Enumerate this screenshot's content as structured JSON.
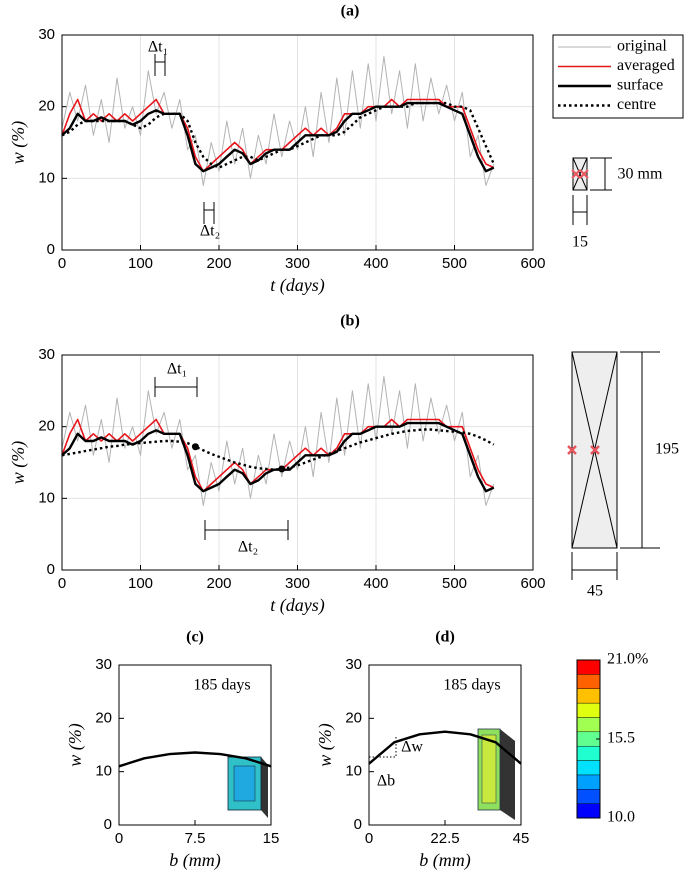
{
  "chart_data": [
    {
      "type": "line",
      "title": "(a)",
      "xlabel": "t (days)",
      "ylabel": "w (%)",
      "xlim": [
        0,
        600
      ],
      "xticks": [
        0,
        100,
        200,
        300,
        400,
        500,
        600
      ],
      "ylim": [
        0,
        30
      ],
      "yticks": [
        0,
        10,
        20,
        30
      ],
      "grid": true,
      "legend": "right",
      "x": [
        0,
        10,
        20,
        30,
        40,
        50,
        60,
        70,
        80,
        90,
        100,
        110,
        120,
        130,
        140,
        150,
        160,
        170,
        180,
        190,
        200,
        210,
        220,
        230,
        240,
        250,
        260,
        270,
        280,
        290,
        300,
        310,
        320,
        330,
        340,
        350,
        360,
        370,
        380,
        390,
        400,
        410,
        420,
        430,
        440,
        450,
        460,
        470,
        480,
        490,
        500,
        510,
        520,
        530,
        540,
        550
      ],
      "series": [
        {
          "name": "original",
          "color": "#b3b3b3",
          "linestyle": "solid",
          "values": [
            17,
            22,
            18,
            23,
            16,
            21,
            15,
            24,
            17,
            20,
            16,
            25,
            19,
            22,
            17,
            21,
            14,
            16,
            9,
            15,
            11,
            18,
            12,
            17,
            10,
            16,
            12,
            19,
            13,
            18,
            14,
            20,
            13,
            22,
            15,
            24,
            16,
            25,
            17,
            26,
            18,
            27,
            19,
            25,
            17,
            26,
            18,
            24,
            19,
            23,
            18,
            22,
            13,
            16,
            9,
            12
          ]
        },
        {
          "name": "averaged",
          "color": "#e8141c",
          "linestyle": "solid",
          "values": [
            16,
            19,
            21,
            18,
            19,
            18,
            19,
            18,
            19,
            18,
            19,
            20,
            21,
            19,
            19,
            19,
            17,
            13,
            11,
            12,
            13,
            14,
            15,
            14,
            12,
            13,
            14,
            14,
            14,
            15,
            16,
            17,
            16,
            17,
            16,
            17,
            19,
            19,
            19,
            20,
            20,
            20,
            21,
            20,
            21,
            21,
            21,
            21,
            21,
            20,
            20,
            20,
            17,
            14,
            12,
            11.5
          ]
        },
        {
          "name": "surface",
          "color": "#000000",
          "linestyle": "solid",
          "values": [
            16,
            17,
            19,
            18,
            18,
            18.5,
            18,
            18,
            18,
            17.5,
            18,
            19,
            19.5,
            19,
            19,
            19,
            16,
            12,
            11,
            11.5,
            12,
            13,
            14,
            13.5,
            12,
            12.5,
            13.5,
            14,
            14,
            14,
            15,
            16,
            16,
            16,
            16,
            16.5,
            18,
            19,
            19,
            19.5,
            20,
            20,
            20,
            20,
            20.5,
            20.5,
            20.5,
            20.5,
            20.5,
            20,
            19.5,
            19,
            16,
            13,
            11,
            11.5
          ]
        },
        {
          "name": "centre",
          "color": "#000000",
          "linestyle": "dotted",
          "values": [
            16,
            16.5,
            17.5,
            18,
            18,
            18,
            18,
            18,
            18,
            17.5,
            17,
            17.5,
            18.5,
            19,
            19,
            19,
            18,
            15,
            13,
            12,
            11.5,
            12,
            12.5,
            13,
            13,
            12.5,
            13,
            13.5,
            14,
            14,
            14.5,
            15,
            15.5,
            16,
            16,
            16,
            16.5,
            17.5,
            18.5,
            19,
            19.5,
            20,
            20,
            20,
            20,
            20.5,
            20.5,
            20.5,
            20.5,
            20.5,
            20,
            20,
            19.5,
            17,
            14.5,
            12
          ]
        }
      ],
      "annotations": [
        "Δt₁",
        "Δt₂",
        "30 mm",
        "15"
      ]
    },
    {
      "type": "line",
      "title": "(b)",
      "xlabel": "t (days)",
      "ylabel": "w (%)",
      "xlim": [
        0,
        600
      ],
      "xticks": [
        0,
        100,
        200,
        300,
        400,
        500,
        600
      ],
      "ylim": [
        0,
        30
      ],
      "yticks": [
        0,
        10,
        20,
        30
      ],
      "grid": true,
      "x": [
        0,
        10,
        20,
        30,
        40,
        50,
        60,
        70,
        80,
        90,
        100,
        110,
        120,
        130,
        140,
        150,
        160,
        170,
        180,
        190,
        200,
        210,
        220,
        230,
        240,
        250,
        260,
        270,
        280,
        290,
        300,
        310,
        320,
        330,
        340,
        350,
        360,
        370,
        380,
        390,
        400,
        410,
        420,
        430,
        440,
        450,
        460,
        470,
        480,
        490,
        500,
        510,
        520,
        530,
        540,
        550
      ],
      "series": [
        {
          "color": "#b3b3b3",
          "linestyle": "solid",
          "values": [
            17,
            22,
            18,
            23,
            16,
            21,
            15,
            24,
            17,
            20,
            16,
            25,
            19,
            22,
            17,
            21,
            14,
            16,
            9,
            15,
            11,
            18,
            12,
            17,
            10,
            16,
            12,
            19,
            13,
            18,
            14,
            20,
            13,
            22,
            15,
            24,
            16,
            25,
            17,
            26,
            18,
            27,
            19,
            25,
            17,
            26,
            18,
            24,
            19,
            23,
            18,
            22,
            13,
            16,
            9,
            12
          ]
        },
        {
          "color": "#e8141c",
          "linestyle": "solid",
          "values": [
            16,
            19,
            21,
            18,
            19,
            18,
            19,
            18,
            19,
            18,
            19,
            20,
            21,
            19,
            19,
            19,
            17,
            13,
            11,
            12,
            13,
            14,
            15,
            14,
            12,
            13,
            14,
            14,
            14,
            15,
            16,
            17,
            16,
            17,
            16,
            17,
            19,
            19,
            19,
            20,
            20,
            20,
            21,
            20,
            21,
            21,
            21,
            21,
            21,
            20,
            20,
            20,
            17,
            14,
            12,
            11.5
          ]
        },
        {
          "color": "#000000",
          "linestyle": "solid",
          "values": [
            16,
            17,
            19,
            18,
            18,
            18.5,
            18,
            18,
            18,
            17.5,
            18,
            19,
            19.5,
            19,
            19,
            19,
            16,
            12,
            11,
            11.5,
            12,
            13,
            14,
            13.5,
            12,
            12.5,
            13.5,
            14,
            14,
            14,
            15,
            16,
            16,
            16,
            16,
            16.5,
            18,
            19,
            19,
            19.5,
            20,
            20,
            20,
            20,
            20.5,
            20.5,
            20.5,
            20.5,
            20.5,
            20,
            19.5,
            19,
            16,
            13,
            11,
            11.5
          ]
        },
        {
          "color": "#000000",
          "linestyle": "dotted",
          "values": [
            16,
            16.2,
            16.4,
            16.6,
            16.8,
            17,
            17.2,
            17.3,
            17.5,
            17.6,
            17.7,
            17.8,
            17.9,
            18,
            18,
            17.9,
            17.7,
            17.2,
            16.7,
            16.2,
            15.8,
            15.4,
            15,
            14.7,
            14.4,
            14.2,
            14.1,
            14,
            14.1,
            14.3,
            14.6,
            15,
            15.4,
            15.8,
            16.2,
            16.6,
            17,
            17.4,
            17.8,
            18.1,
            18.4,
            18.7,
            19,
            19.2,
            19.4,
            19.5,
            19.6,
            19.6,
            19.5,
            19.4,
            19.3,
            19.2,
            19,
            18.6,
            18.1,
            17.5
          ]
        }
      ],
      "annotations": [
        "Δt₁",
        "Δt₂",
        "195",
        "45"
      ]
    },
    {
      "type": "line",
      "title": "(c)",
      "xlabel": "b (mm)",
      "ylabel": "w (%)",
      "xlim": [
        0,
        15
      ],
      "xticks": [
        0,
        7.5,
        15
      ],
      "ylim": [
        0,
        30
      ],
      "yticks": [
        0,
        10,
        20,
        30
      ],
      "grid": false,
      "x": [
        0,
        2.5,
        5,
        7.5,
        10,
        12.5,
        15
      ],
      "series": [
        {
          "color": "#000000",
          "linestyle": "solid",
          "values": [
            11,
            12.5,
            13.3,
            13.6,
            13.3,
            12.5,
            11
          ]
        }
      ],
      "annotations": [
        "185 days"
      ]
    },
    {
      "type": "line",
      "title": "(d)",
      "xlabel": "b (mm)",
      "ylabel": "w (%)",
      "xlim": [
        0,
        45
      ],
      "xticks": [
        0,
        22.5,
        45
      ],
      "ylim": [
        0,
        30
      ],
      "yticks": [
        0,
        10,
        20,
        30
      ],
      "grid": false,
      "x": [
        0,
        7.5,
        15,
        22.5,
        30,
        37.5,
        45
      ],
      "series": [
        {
          "color": "#000000",
          "linestyle": "solid",
          "values": [
            11.5,
            15.5,
            17,
            17.5,
            17,
            15.5,
            11.5
          ]
        }
      ],
      "annotations": [
        "185 days",
        "Δw",
        "Δb"
      ]
    }
  ],
  "colorbar": {
    "range": [
      10,
      21
    ],
    "ticks": [
      {
        "value": 21,
        "label": "21.0%"
      },
      {
        "value": 15.5,
        "label": "15.5"
      },
      {
        "value": 10,
        "label": "10.0"
      }
    ],
    "colors": [
      "#0000ff",
      "#0050ff",
      "#00a0ff",
      "#00e0ff",
      "#20ffd0",
      "#60ff90",
      "#a0ff50",
      "#e0ff10",
      "#ffc000",
      "#ff6000",
      "#ff0000"
    ]
  }
}
